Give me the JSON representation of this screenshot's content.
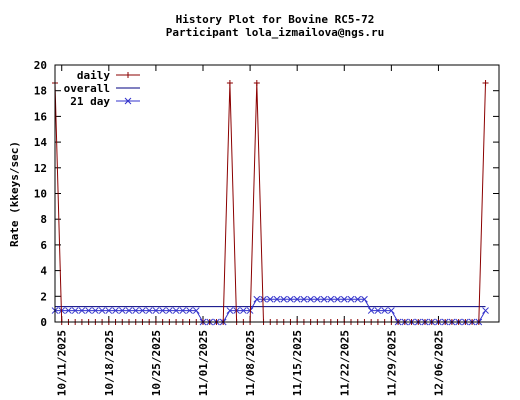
{
  "chart_data": {
    "type": "line",
    "title": "History Plot for Bovine RC5-72",
    "subtitle": "Participant lola_izmailova@ngs.ru",
    "xlabel": "",
    "ylabel": "Rate (kkeys/sec)",
    "ylim": [
      0,
      20
    ],
    "yticks": [
      0,
      2,
      4,
      6,
      8,
      10,
      12,
      14,
      16,
      18,
      20
    ],
    "xlim": [
      "2025-10-10",
      "2025-12-15"
    ],
    "xticks": [
      "10/11/2025",
      "10/18/2025",
      "10/25/2025",
      "11/01/2025",
      "11/08/2025",
      "11/15/2025",
      "11/22/2025",
      "11/29/2025",
      "12/06/2025"
    ],
    "grid": false,
    "legend_position": "top-left",
    "series": [
      {
        "name": "daily",
        "color": "#8b0000",
        "marker": "plus",
        "points": [
          [
            "2025-10-10",
            18.6
          ],
          [
            "2025-10-11",
            0
          ],
          [
            "2025-10-12",
            0
          ],
          [
            "2025-10-13",
            0
          ],
          [
            "2025-10-14",
            0
          ],
          [
            "2025-10-15",
            0
          ],
          [
            "2025-10-16",
            0
          ],
          [
            "2025-10-17",
            0
          ],
          [
            "2025-10-18",
            0
          ],
          [
            "2025-10-19",
            0
          ],
          [
            "2025-10-20",
            0
          ],
          [
            "2025-10-21",
            0
          ],
          [
            "2025-10-22",
            0
          ],
          [
            "2025-10-23",
            0
          ],
          [
            "2025-10-24",
            0
          ],
          [
            "2025-10-25",
            0
          ],
          [
            "2025-10-26",
            0
          ],
          [
            "2025-10-27",
            0
          ],
          [
            "2025-10-28",
            0
          ],
          [
            "2025-10-29",
            0
          ],
          [
            "2025-10-30",
            0
          ],
          [
            "2025-10-31",
            0
          ],
          [
            "2025-11-01",
            0
          ],
          [
            "2025-11-02",
            0
          ],
          [
            "2025-11-03",
            0
          ],
          [
            "2025-11-04",
            0
          ],
          [
            "2025-11-05",
            18.6
          ],
          [
            "2025-11-06",
            0
          ],
          [
            "2025-11-07",
            0
          ],
          [
            "2025-11-08",
            0
          ],
          [
            "2025-11-09",
            18.6
          ],
          [
            "2025-11-10",
            0
          ],
          [
            "2025-11-11",
            0
          ],
          [
            "2025-11-12",
            0
          ],
          [
            "2025-11-13",
            0
          ],
          [
            "2025-11-14",
            0
          ],
          [
            "2025-11-15",
            0
          ],
          [
            "2025-11-16",
            0
          ],
          [
            "2025-11-17",
            0
          ],
          [
            "2025-11-18",
            0
          ],
          [
            "2025-11-19",
            0
          ],
          [
            "2025-11-20",
            0
          ],
          [
            "2025-11-21",
            0
          ],
          [
            "2025-11-22",
            0
          ],
          [
            "2025-11-23",
            0
          ],
          [
            "2025-11-24",
            0
          ],
          [
            "2025-11-25",
            0
          ],
          [
            "2025-11-26",
            0
          ],
          [
            "2025-11-27",
            0
          ],
          [
            "2025-11-28",
            0
          ],
          [
            "2025-11-29",
            0
          ],
          [
            "2025-11-30",
            0
          ],
          [
            "2025-12-01",
            0
          ],
          [
            "2025-12-02",
            0
          ],
          [
            "2025-12-03",
            0
          ],
          [
            "2025-12-04",
            0
          ],
          [
            "2025-12-05",
            0
          ],
          [
            "2025-12-06",
            0
          ],
          [
            "2025-12-07",
            0
          ],
          [
            "2025-12-08",
            0
          ],
          [
            "2025-12-09",
            0
          ],
          [
            "2025-12-10",
            0
          ],
          [
            "2025-12-11",
            0
          ],
          [
            "2025-12-12",
            0
          ],
          [
            "2025-12-13",
            18.6
          ]
        ]
      },
      {
        "name": "overall",
        "color": "#000080",
        "marker": "none",
        "points": [
          [
            "2025-10-10",
            1.2
          ],
          [
            "2025-12-13",
            1.2
          ]
        ]
      },
      {
        "name": "21 day",
        "color": "#3333cc",
        "marker": "x",
        "points": [
          [
            "2025-10-10",
            0.89
          ],
          [
            "2025-10-11",
            0.89
          ],
          [
            "2025-10-12",
            0.89
          ],
          [
            "2025-10-13",
            0.89
          ],
          [
            "2025-10-14",
            0.89
          ],
          [
            "2025-10-15",
            0.89
          ],
          [
            "2025-10-16",
            0.89
          ],
          [
            "2025-10-17",
            0.89
          ],
          [
            "2025-10-18",
            0.89
          ],
          [
            "2025-10-19",
            0.89
          ],
          [
            "2025-10-20",
            0.89
          ],
          [
            "2025-10-21",
            0.89
          ],
          [
            "2025-10-22",
            0.89
          ],
          [
            "2025-10-23",
            0.89
          ],
          [
            "2025-10-24",
            0.89
          ],
          [
            "2025-10-25",
            0.89
          ],
          [
            "2025-10-26",
            0.89
          ],
          [
            "2025-10-27",
            0.89
          ],
          [
            "2025-10-28",
            0.89
          ],
          [
            "2025-10-29",
            0.89
          ],
          [
            "2025-10-30",
            0.89
          ],
          [
            "2025-10-31",
            0.89
          ],
          [
            "2025-11-01",
            0
          ],
          [
            "2025-11-02",
            0
          ],
          [
            "2025-11-03",
            0
          ],
          [
            "2025-11-04",
            0
          ],
          [
            "2025-11-05",
            0.89
          ],
          [
            "2025-11-06",
            0.89
          ],
          [
            "2025-11-07",
            0.89
          ],
          [
            "2025-11-08",
            0.89
          ],
          [
            "2025-11-09",
            1.77
          ],
          [
            "2025-11-10",
            1.77
          ],
          [
            "2025-11-11",
            1.77
          ],
          [
            "2025-11-12",
            1.77
          ],
          [
            "2025-11-13",
            1.77
          ],
          [
            "2025-11-14",
            1.77
          ],
          [
            "2025-11-15",
            1.77
          ],
          [
            "2025-11-16",
            1.77
          ],
          [
            "2025-11-17",
            1.77
          ],
          [
            "2025-11-18",
            1.77
          ],
          [
            "2025-11-19",
            1.77
          ],
          [
            "2025-11-20",
            1.77
          ],
          [
            "2025-11-21",
            1.77
          ],
          [
            "2025-11-22",
            1.77
          ],
          [
            "2025-11-23",
            1.77
          ],
          [
            "2025-11-24",
            1.77
          ],
          [
            "2025-11-25",
            1.77
          ],
          [
            "2025-11-26",
            0.89
          ],
          [
            "2025-11-27",
            0.89
          ],
          [
            "2025-11-28",
            0.89
          ],
          [
            "2025-11-29",
            0.89
          ],
          [
            "2025-11-30",
            0
          ],
          [
            "2025-12-01",
            0
          ],
          [
            "2025-12-02",
            0
          ],
          [
            "2025-12-03",
            0
          ],
          [
            "2025-12-04",
            0
          ],
          [
            "2025-12-05",
            0
          ],
          [
            "2025-12-06",
            0
          ],
          [
            "2025-12-07",
            0
          ],
          [
            "2025-12-08",
            0
          ],
          [
            "2025-12-09",
            0
          ],
          [
            "2025-12-10",
            0
          ],
          [
            "2025-12-11",
            0
          ],
          [
            "2025-12-12",
            0
          ],
          [
            "2025-12-13",
            0.89
          ]
        ]
      }
    ]
  }
}
